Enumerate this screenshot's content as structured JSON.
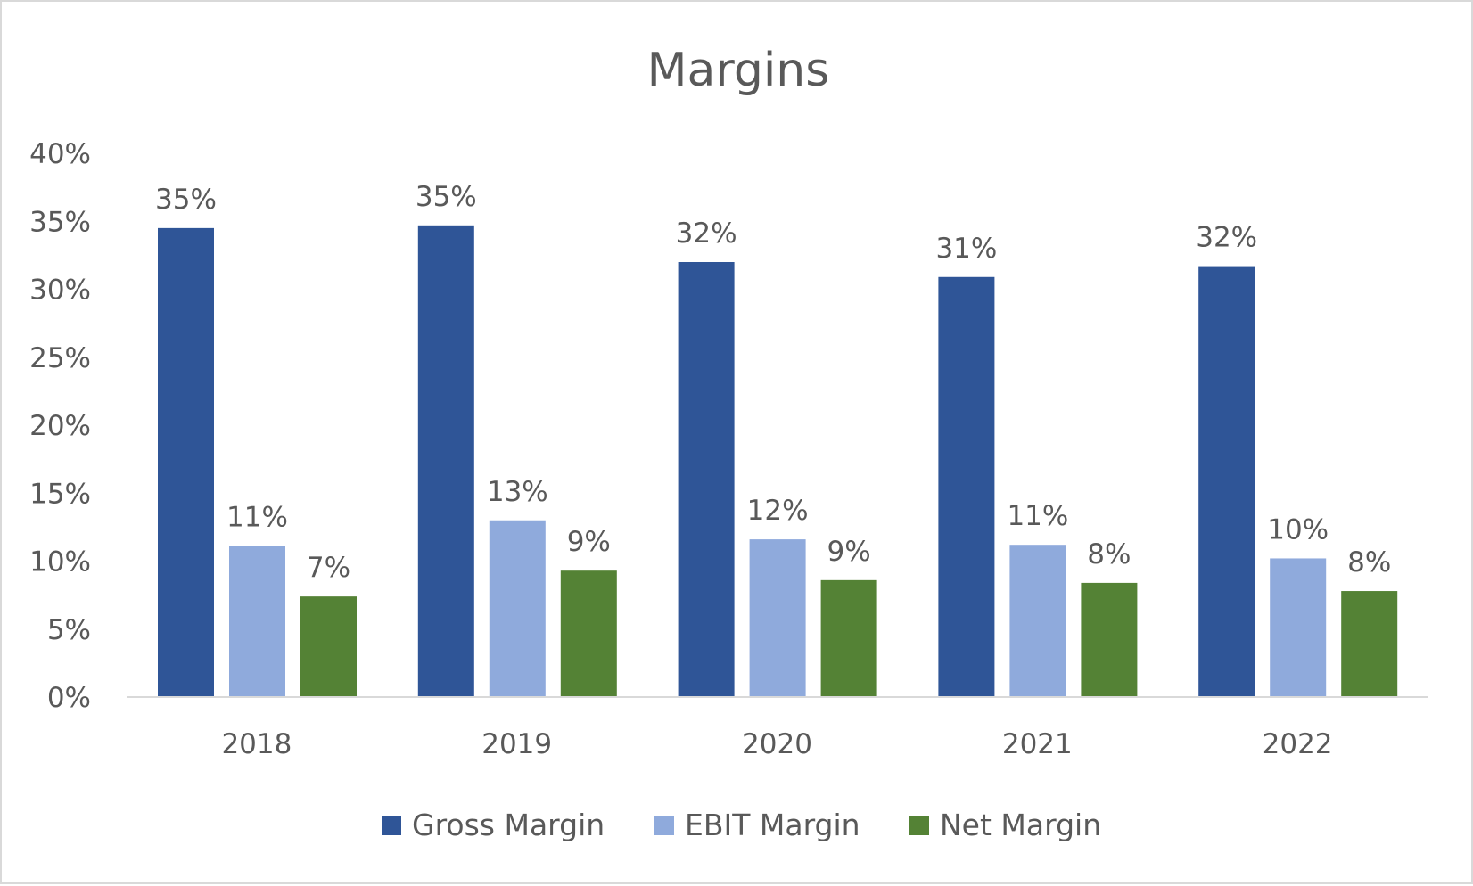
{
  "chart_data": {
    "type": "bar",
    "title": "Margins",
    "xlabel": "",
    "ylabel": "",
    "categories": [
      "2018",
      "2019",
      "2020",
      "2021",
      "2022"
    ],
    "ylim": [
      0,
      40
    ],
    "yticks": [
      "0%",
      "5%",
      "10%",
      "15%",
      "20%",
      "25%",
      "30%",
      "35%",
      "40%"
    ],
    "grid": false,
    "legend_position": "bottom",
    "series": [
      {
        "name": "Gross Margin",
        "color": "#2F5597",
        "values": [
          34.5,
          34.7,
          32.0,
          30.9,
          31.7
        ],
        "labels": [
          "35%",
          "35%",
          "32%",
          "31%",
          "32%"
        ]
      },
      {
        "name": "EBIT Margin",
        "color": "#8FAADC",
        "values": [
          11.1,
          13.0,
          11.6,
          11.2,
          10.2
        ],
        "labels": [
          "11%",
          "13%",
          "12%",
          "11%",
          "10%"
        ]
      },
      {
        "name": "Net Margin",
        "color": "#548235",
        "values": [
          7.4,
          9.3,
          8.6,
          8.4,
          7.8
        ],
        "labels": [
          "7%",
          "9%",
          "9%",
          "8%",
          "8%"
        ]
      }
    ]
  }
}
